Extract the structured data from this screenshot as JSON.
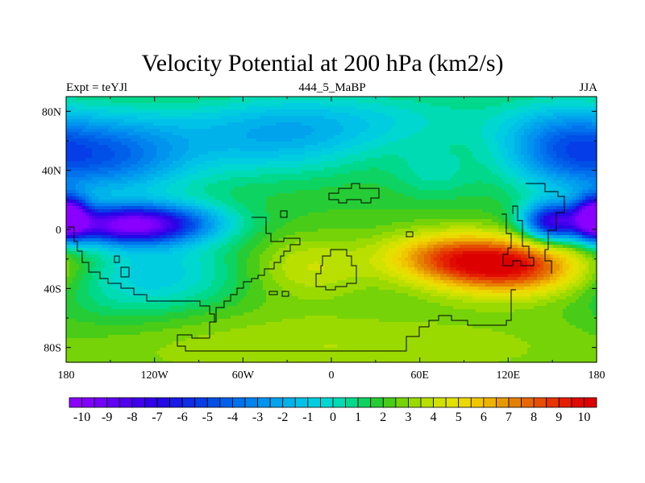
{
  "chart_data": {
    "type": "heatmap",
    "title": "Velocity Potential at 200 hPa (km2/s)",
    "left_string": "Expt = teYJl",
    "center_string": "444_5_MaBP",
    "right_string": "JJA",
    "x_range": [
      -180,
      180
    ],
    "y_range": [
      -90,
      90
    ],
    "x_ticks": [
      {
        "value": -180,
        "label": "180"
      },
      {
        "value": -120,
        "label": "120W"
      },
      {
        "value": -60,
        "label": "60W"
      },
      {
        "value": 0,
        "label": "0"
      },
      {
        "value": 60,
        "label": "60E"
      },
      {
        "value": 120,
        "label": "120E"
      },
      {
        "value": 180,
        "label": "180"
      }
    ],
    "y_ticks": [
      {
        "value": 80,
        "label": "80N"
      },
      {
        "value": 40,
        "label": "40N"
      },
      {
        "value": 0,
        "label": "0"
      },
      {
        "value": -40,
        "label": "40S"
      },
      {
        "value": -80,
        "label": "80S"
      }
    ],
    "colorbar_labels": [
      "-10",
      "-9",
      "-8",
      "-7",
      "-6",
      "-5",
      "-4",
      "-3",
      "-2",
      "-1",
      "0",
      "1",
      "2",
      "3",
      "4",
      "5",
      "6",
      "7",
      "8",
      "9",
      "10"
    ],
    "colorbar_range": [
      -10,
      10
    ],
    "levels_per_unit": 2,
    "background_value": 2,
    "features": [
      {
        "lon": -140,
        "lat": 3,
        "amp": -10.5,
        "slon": 30,
        "slat": 9
      },
      {
        "lon": -100,
        "lat": 5,
        "amp": -3,
        "slon": 30,
        "slat": 10
      },
      {
        "lon": -150,
        "lat": 50,
        "amp": -5.5,
        "slon": 40,
        "slat": 20
      },
      {
        "lon": -40,
        "lat": 60,
        "amp": -3,
        "slon": 50,
        "slat": 18
      },
      {
        "lon": 20,
        "lat": 75,
        "amp": -2,
        "slon": 80,
        "slat": 15
      },
      {
        "lon": 150,
        "lat": 5,
        "amp": -9,
        "slon": 14,
        "slat": 9
      },
      {
        "lon": 180,
        "lat": 8,
        "amp": -6,
        "slon": 10,
        "slat": 10
      },
      {
        "lon": -180,
        "lat": 8,
        "amp": -6,
        "slon": 10,
        "slat": 10
      },
      {
        "lon": 155,
        "lat": 55,
        "amp": -4.5,
        "slon": 30,
        "slat": 20
      },
      {
        "lon": 70,
        "lat": 38,
        "amp": -1.5,
        "slon": 20,
        "slat": 12
      },
      {
        "lon": -110,
        "lat": -30,
        "amp": -2.5,
        "slon": 35,
        "slat": 18
      },
      {
        "lon": -150,
        "lat": -40,
        "amp": -1,
        "slon": 30,
        "slat": 20
      },
      {
        "lon": 120,
        "lat": -25,
        "amp": 7.5,
        "slon": 35,
        "slat": 13
      },
      {
        "lon": 75,
        "lat": -18,
        "amp": 4,
        "slon": 30,
        "slat": 12
      },
      {
        "lon": -15,
        "lat": -25,
        "amp": 2,
        "slon": 30,
        "slat": 15
      },
      {
        "lon": 0,
        "lat": -80,
        "amp": 1.5,
        "slon": 150,
        "slat": 20
      }
    ]
  }
}
